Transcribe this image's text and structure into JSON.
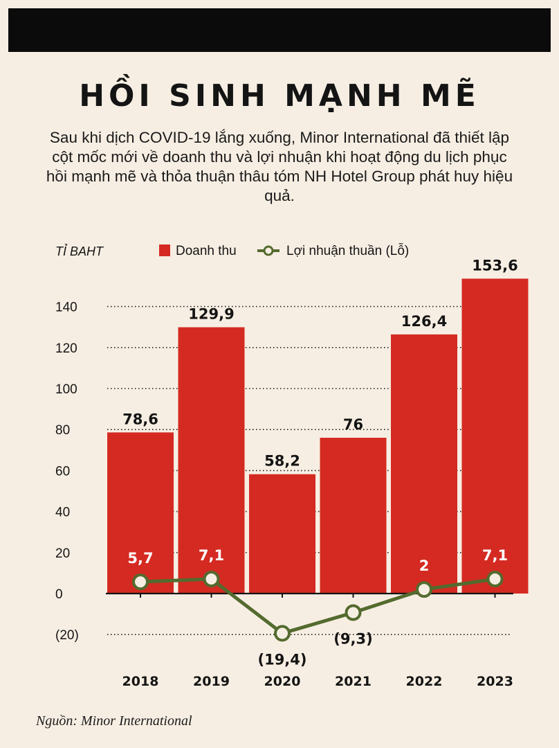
{
  "header": {
    "title": "HỒI SINH MẠNH MẼ",
    "subtitle": "Sau khi dịch COVID-19 lắng xuống, Minor International đã thiết lập cột mốc mới về doanh thu và lợi nhuận khi hoạt động du lịch phục hồi mạnh mẽ và thỏa thuận thâu tóm NH Hotel Group phát huy hiệu quả."
  },
  "source": "Nguồn: Minor International",
  "colors": {
    "bar": "#d42a22",
    "line": "#536b2e",
    "background": "#f7eee3",
    "text": "#141414"
  },
  "chart_data": {
    "type": "bar",
    "unit_label": "TỈ BAHT",
    "categories": [
      "2018",
      "2019",
      "2020",
      "2021",
      "2022",
      "2023"
    ],
    "series": [
      {
        "name": "Doanh thu",
        "type": "bar",
        "values": [
          78.6,
          129.9,
          58.2,
          76,
          126.4,
          153.6
        ],
        "labels": [
          "78,6",
          "129,9",
          "58,2",
          "76",
          "126,4",
          "153,6"
        ]
      },
      {
        "name": "Lợi nhuận thuần (Lỗ)",
        "type": "line",
        "values": [
          5.7,
          7.1,
          -19.4,
          -9.3,
          2,
          7.1
        ],
        "labels": [
          "5,7",
          "7,1",
          "(19,4)",
          "(9,3)",
          "2",
          "7,1"
        ]
      }
    ],
    "yticks": [
      {
        "value": 140,
        "label": "140"
      },
      {
        "value": 120,
        "label": "120"
      },
      {
        "value": 100,
        "label": "100"
      },
      {
        "value": 80,
        "label": "80"
      },
      {
        "value": 60,
        "label": "60"
      },
      {
        "value": 40,
        "label": "40"
      },
      {
        "value": 20,
        "label": "20"
      },
      {
        "value": 0,
        "label": "0"
      },
      {
        "value": -20,
        "label": "(20)"
      }
    ],
    "ylim": [
      -20,
      153.6
    ],
    "grid": true,
    "legend": "top"
  }
}
